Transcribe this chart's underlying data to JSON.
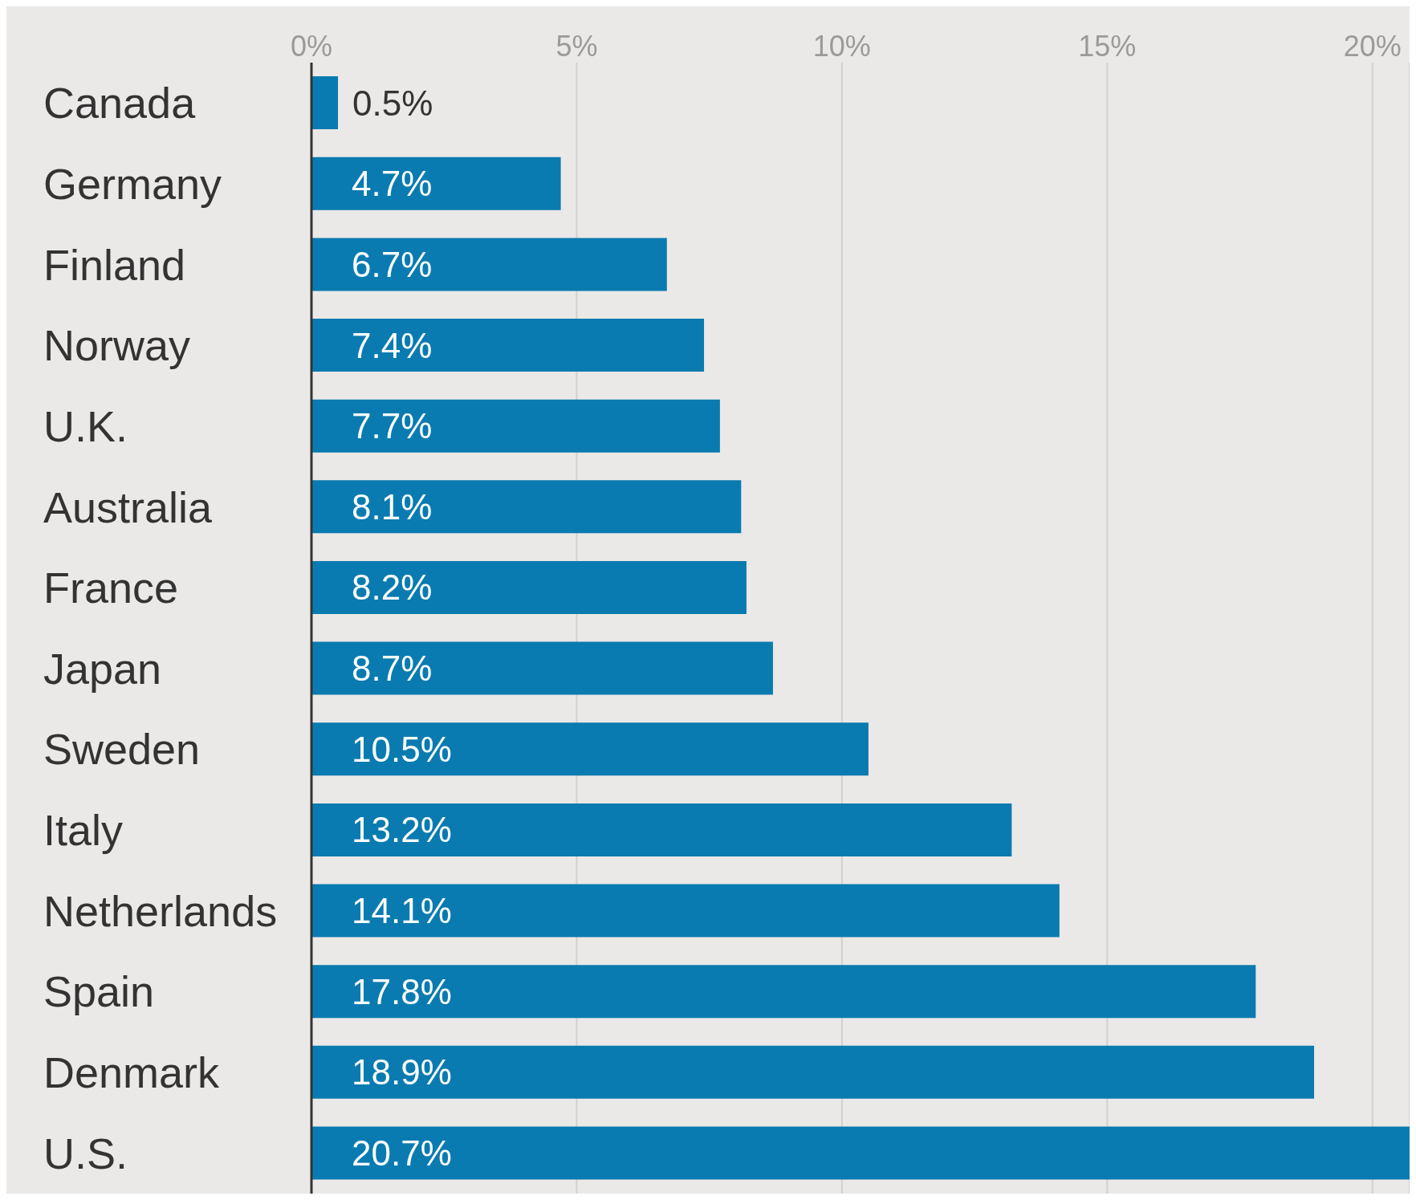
{
  "chart_data": {
    "type": "bar",
    "orientation": "horizontal",
    "categories": [
      "Canada",
      "Germany",
      "Finland",
      "Norway",
      "U.K.",
      "Australia",
      "France",
      "Japan",
      "Sweden",
      "Italy",
      "Netherlands",
      "Spain",
      "Denmark",
      "U.S."
    ],
    "values": [
      0.5,
      4.7,
      6.7,
      7.4,
      7.7,
      8.1,
      8.2,
      8.7,
      10.5,
      13.2,
      14.1,
      17.8,
      18.9,
      20.7
    ],
    "value_labels": [
      "0.5%",
      "4.7%",
      "6.7%",
      "7.4%",
      "7.7%",
      "8.1%",
      "8.2%",
      "8.7%",
      "10.5%",
      "13.2%",
      "14.1%",
      "17.8%",
      "18.9%",
      "20.7%"
    ],
    "color": "#0a7bb0",
    "xlim": [
      0,
      20.7
    ],
    "xticks": [
      {
        "value": 0,
        "label": "0%"
      },
      {
        "value": 5,
        "label": "5%"
      },
      {
        "value": 10,
        "label": "10%"
      },
      {
        "value": 15,
        "label": "15%"
      },
      {
        "value": 20,
        "label": "20%"
      }
    ],
    "grid": "x"
  }
}
